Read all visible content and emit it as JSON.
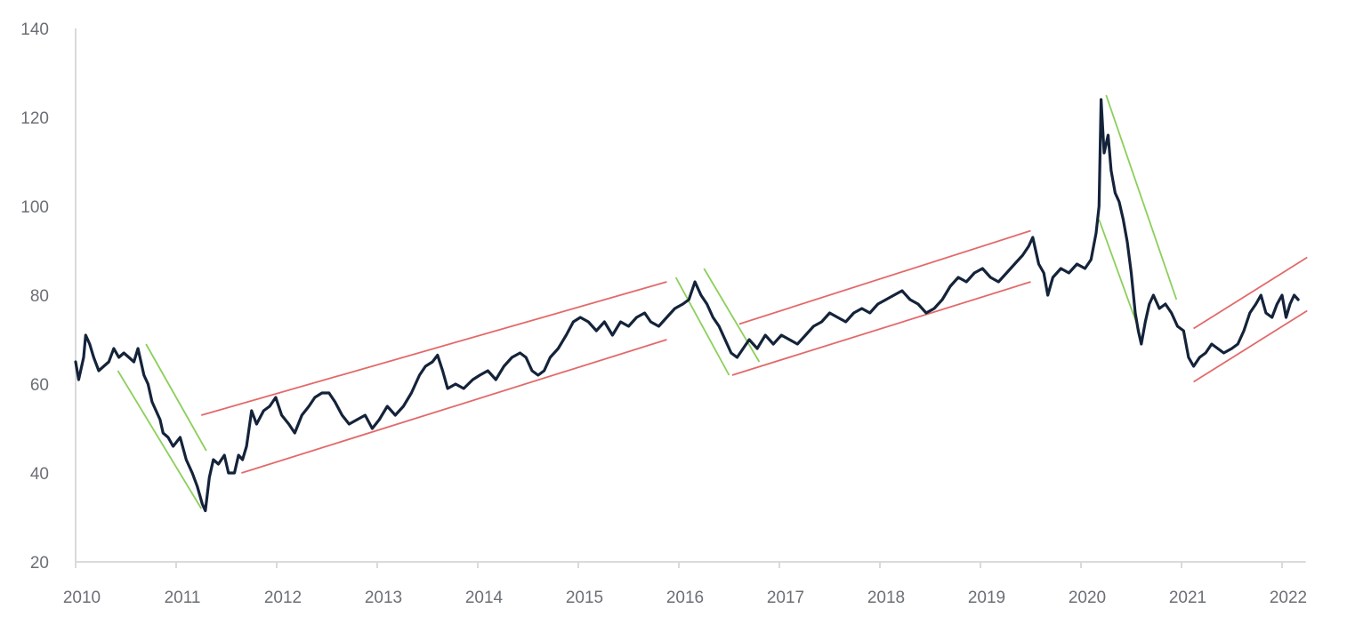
{
  "chart_data": {
    "type": "line",
    "title": "",
    "xlabel": "",
    "ylabel": "",
    "xlim": [
      2010.0,
      2022.2
    ],
    "ylim": [
      20,
      140
    ],
    "y_ticks": [
      {
        "value": 20,
        "label": "20"
      },
      {
        "value": 40,
        "label": "40"
      },
      {
        "value": 60,
        "label": "60"
      },
      {
        "value": 80,
        "label": "80"
      },
      {
        "value": 100,
        "label": "100"
      },
      {
        "value": 120,
        "label": "120"
      },
      {
        "value": 140,
        "label": "140"
      }
    ],
    "x_ticks": [
      {
        "value": 2010,
        "label": "2010"
      },
      {
        "value": 2011,
        "label": "2011"
      },
      {
        "value": 2012,
        "label": "2012"
      },
      {
        "value": 2013,
        "label": "2013"
      },
      {
        "value": 2014,
        "label": "2014"
      },
      {
        "value": 2015,
        "label": "2015"
      },
      {
        "value": 2016,
        "label": "2016"
      },
      {
        "value": 2017,
        "label": "2017"
      },
      {
        "value": 2018,
        "label": "2018"
      },
      {
        "value": 2019,
        "label": "2019"
      },
      {
        "value": 2020,
        "label": "2020"
      },
      {
        "value": 2021,
        "label": "2021"
      },
      {
        "value": 2022,
        "label": "2022"
      }
    ],
    "grid": false,
    "legend": "none",
    "series": [
      {
        "color": "#14233a",
        "points": [
          [
            2010.0,
            65
          ],
          [
            2010.03,
            61
          ],
          [
            2010.08,
            66
          ],
          [
            2010.1,
            71
          ],
          [
            2010.14,
            69
          ],
          [
            2010.18,
            66
          ],
          [
            2010.23,
            63
          ],
          [
            2010.28,
            64
          ],
          [
            2010.33,
            65
          ],
          [
            2010.38,
            68
          ],
          [
            2010.43,
            66
          ],
          [
            2010.48,
            67
          ],
          [
            2010.53,
            66
          ],
          [
            2010.58,
            65
          ],
          [
            2010.62,
            68
          ],
          [
            2010.68,
            62
          ],
          [
            2010.72,
            60
          ],
          [
            2010.76,
            56
          ],
          [
            2010.8,
            54
          ],
          [
            2010.84,
            52
          ],
          [
            2010.87,
            49
          ],
          [
            2010.92,
            48
          ],
          [
            2010.97,
            46
          ],
          [
            2011.04,
            48
          ],
          [
            2011.1,
            43
          ],
          [
            2011.16,
            40
          ],
          [
            2011.21,
            37
          ],
          [
            2011.26,
            33
          ],
          [
            2011.29,
            31.5
          ],
          [
            2011.33,
            39
          ],
          [
            2011.37,
            43
          ],
          [
            2011.42,
            42
          ],
          [
            2011.48,
            44
          ],
          [
            2011.52,
            40
          ],
          [
            2011.58,
            40
          ],
          [
            2011.62,
            44
          ],
          [
            2011.66,
            43
          ],
          [
            2011.7,
            46
          ],
          [
            2011.75,
            54
          ],
          [
            2011.8,
            51
          ],
          [
            2011.87,
            54
          ],
          [
            2011.93,
            55
          ],
          [
            2011.99,
            57
          ],
          [
            2012.05,
            53
          ],
          [
            2012.12,
            51
          ],
          [
            2012.18,
            49
          ],
          [
            2012.25,
            53
          ],
          [
            2012.32,
            55
          ],
          [
            2012.38,
            57
          ],
          [
            2012.45,
            58
          ],
          [
            2012.52,
            58
          ],
          [
            2012.58,
            56
          ],
          [
            2012.65,
            53
          ],
          [
            2012.72,
            51
          ],
          [
            2012.8,
            52
          ],
          [
            2012.88,
            53
          ],
          [
            2012.95,
            50
          ],
          [
            2013.02,
            52
          ],
          [
            2013.1,
            55
          ],
          [
            2013.18,
            53
          ],
          [
            2013.26,
            55
          ],
          [
            2013.34,
            58
          ],
          [
            2013.42,
            62
          ],
          [
            2013.48,
            64
          ],
          [
            2013.55,
            65
          ],
          [
            2013.6,
            66.5
          ],
          [
            2013.65,
            63
          ],
          [
            2013.7,
            59
          ],
          [
            2013.78,
            60
          ],
          [
            2013.86,
            59
          ],
          [
            2013.95,
            61
          ],
          [
            2014.02,
            62
          ],
          [
            2014.1,
            63
          ],
          [
            2014.18,
            61
          ],
          [
            2014.26,
            64
          ],
          [
            2014.34,
            66
          ],
          [
            2014.42,
            67
          ],
          [
            2014.48,
            66
          ],
          [
            2014.54,
            63
          ],
          [
            2014.6,
            62
          ],
          [
            2014.66,
            63
          ],
          [
            2014.72,
            66
          ],
          [
            2014.8,
            68
          ],
          [
            2014.88,
            71
          ],
          [
            2014.95,
            74
          ],
          [
            2015.02,
            75
          ],
          [
            2015.1,
            74
          ],
          [
            2015.18,
            72
          ],
          [
            2015.26,
            74
          ],
          [
            2015.34,
            71
          ],
          [
            2015.42,
            74
          ],
          [
            2015.5,
            73
          ],
          [
            2015.58,
            75
          ],
          [
            2015.66,
            76
          ],
          [
            2015.72,
            74
          ],
          [
            2015.8,
            73
          ],
          [
            2015.88,
            75
          ],
          [
            2015.96,
            77
          ],
          [
            2016.04,
            78
          ],
          [
            2016.1,
            79
          ],
          [
            2016.16,
            83
          ],
          [
            2016.22,
            80
          ],
          [
            2016.28,
            78
          ],
          [
            2016.34,
            75
          ],
          [
            2016.4,
            73
          ],
          [
            2016.46,
            70
          ],
          [
            2016.52,
            67
          ],
          [
            2016.58,
            66
          ],
          [
            2016.64,
            68
          ],
          [
            2016.7,
            70
          ],
          [
            2016.78,
            68
          ],
          [
            2016.86,
            71
          ],
          [
            2016.94,
            69
          ],
          [
            2017.02,
            71
          ],
          [
            2017.1,
            70
          ],
          [
            2017.18,
            69
          ],
          [
            2017.26,
            71
          ],
          [
            2017.34,
            73
          ],
          [
            2017.42,
            74
          ],
          [
            2017.5,
            76
          ],
          [
            2017.58,
            75
          ],
          [
            2017.66,
            74
          ],
          [
            2017.74,
            76
          ],
          [
            2017.82,
            77
          ],
          [
            2017.9,
            76
          ],
          [
            2017.98,
            78
          ],
          [
            2018.06,
            79
          ],
          [
            2018.14,
            80
          ],
          [
            2018.22,
            81
          ],
          [
            2018.3,
            79
          ],
          [
            2018.38,
            78
          ],
          [
            2018.46,
            76
          ],
          [
            2018.54,
            77
          ],
          [
            2018.62,
            79
          ],
          [
            2018.7,
            82
          ],
          [
            2018.78,
            84
          ],
          [
            2018.86,
            83
          ],
          [
            2018.94,
            85
          ],
          [
            2019.02,
            86
          ],
          [
            2019.1,
            84
          ],
          [
            2019.18,
            83
          ],
          [
            2019.26,
            85
          ],
          [
            2019.34,
            87
          ],
          [
            2019.42,
            89
          ],
          [
            2019.48,
            91
          ],
          [
            2019.52,
            93
          ],
          [
            2019.58,
            87
          ],
          [
            2019.63,
            85
          ],
          [
            2019.67,
            80
          ],
          [
            2019.72,
            84
          ],
          [
            2019.8,
            86
          ],
          [
            2019.88,
            85
          ],
          [
            2019.96,
            87
          ],
          [
            2020.04,
            86
          ],
          [
            2020.1,
            88
          ],
          [
            2020.15,
            94
          ],
          [
            2020.18,
            100
          ],
          [
            2020.2,
            124
          ],
          [
            2020.23,
            112
          ],
          [
            2020.27,
            116
          ],
          [
            2020.3,
            108
          ],
          [
            2020.34,
            103
          ],
          [
            2020.38,
            101
          ],
          [
            2020.42,
            97
          ],
          [
            2020.46,
            92
          ],
          [
            2020.5,
            85
          ],
          [
            2020.54,
            76
          ],
          [
            2020.57,
            72
          ],
          [
            2020.6,
            69
          ],
          [
            2020.64,
            74
          ],
          [
            2020.68,
            78
          ],
          [
            2020.72,
            80
          ],
          [
            2020.78,
            77
          ],
          [
            2020.84,
            78
          ],
          [
            2020.9,
            76
          ],
          [
            2020.96,
            73
          ],
          [
            2021.02,
            72
          ],
          [
            2021.07,
            66
          ],
          [
            2021.12,
            64
          ],
          [
            2021.18,
            66
          ],
          [
            2021.24,
            67
          ],
          [
            2021.3,
            69
          ],
          [
            2021.36,
            68
          ],
          [
            2021.42,
            67
          ],
          [
            2021.5,
            68
          ],
          [
            2021.56,
            69
          ],
          [
            2021.62,
            72
          ],
          [
            2021.68,
            76
          ],
          [
            2021.74,
            78
          ],
          [
            2021.79,
            80
          ],
          [
            2021.84,
            76
          ],
          [
            2021.9,
            75
          ],
          [
            2021.95,
            78
          ],
          [
            2022.0,
            80
          ],
          [
            2022.04,
            75
          ],
          [
            2022.08,
            78
          ],
          [
            2022.12,
            80
          ],
          [
            2022.16,
            79
          ]
        ]
      }
    ],
    "trend_lines": [
      {
        "kind": "down",
        "color": "#8ccf5c",
        "from": [
          2010.42,
          63
        ],
        "to": [
          2011.25,
          32
        ]
      },
      {
        "kind": "down",
        "color": "#8ccf5c",
        "from": [
          2010.7,
          69
        ],
        "to": [
          2011.3,
          45
        ]
      },
      {
        "kind": "up",
        "color": "#e26a6a",
        "from": [
          2011.25,
          53
        ],
        "to": [
          2015.88,
          83
        ]
      },
      {
        "kind": "up",
        "color": "#e26a6a",
        "from": [
          2011.65,
          40
        ],
        "to": [
          2015.88,
          70
        ]
      },
      {
        "kind": "down",
        "color": "#8ccf5c",
        "from": [
          2015.97,
          84
        ],
        "to": [
          2016.5,
          62
        ]
      },
      {
        "kind": "down",
        "color": "#8ccf5c",
        "from": [
          2016.25,
          86
        ],
        "to": [
          2016.8,
          65
        ]
      },
      {
        "kind": "up",
        "color": "#e26a6a",
        "from": [
          2016.6,
          73.5
        ],
        "to": [
          2019.5,
          94.5
        ]
      },
      {
        "kind": "up",
        "color": "#e26a6a",
        "from": [
          2016.53,
          62
        ],
        "to": [
          2019.5,
          83
        ]
      },
      {
        "kind": "down",
        "color": "#8ccf5c",
        "from": [
          2020.25,
          125
        ],
        "to": [
          2020.95,
          79
        ]
      },
      {
        "kind": "down",
        "color": "#8ccf5c",
        "from": [
          2020.18,
          97
        ],
        "to": [
          2020.58,
          72
        ]
      },
      {
        "kind": "up",
        "color": "#e26a6a",
        "from": [
          2021.12,
          72.5
        ],
        "to": [
          2022.25,
          88.5
        ]
      },
      {
        "kind": "up",
        "color": "#e26a6a",
        "from": [
          2021.12,
          60.5
        ],
        "to": [
          2022.25,
          76.5
        ]
      }
    ]
  }
}
